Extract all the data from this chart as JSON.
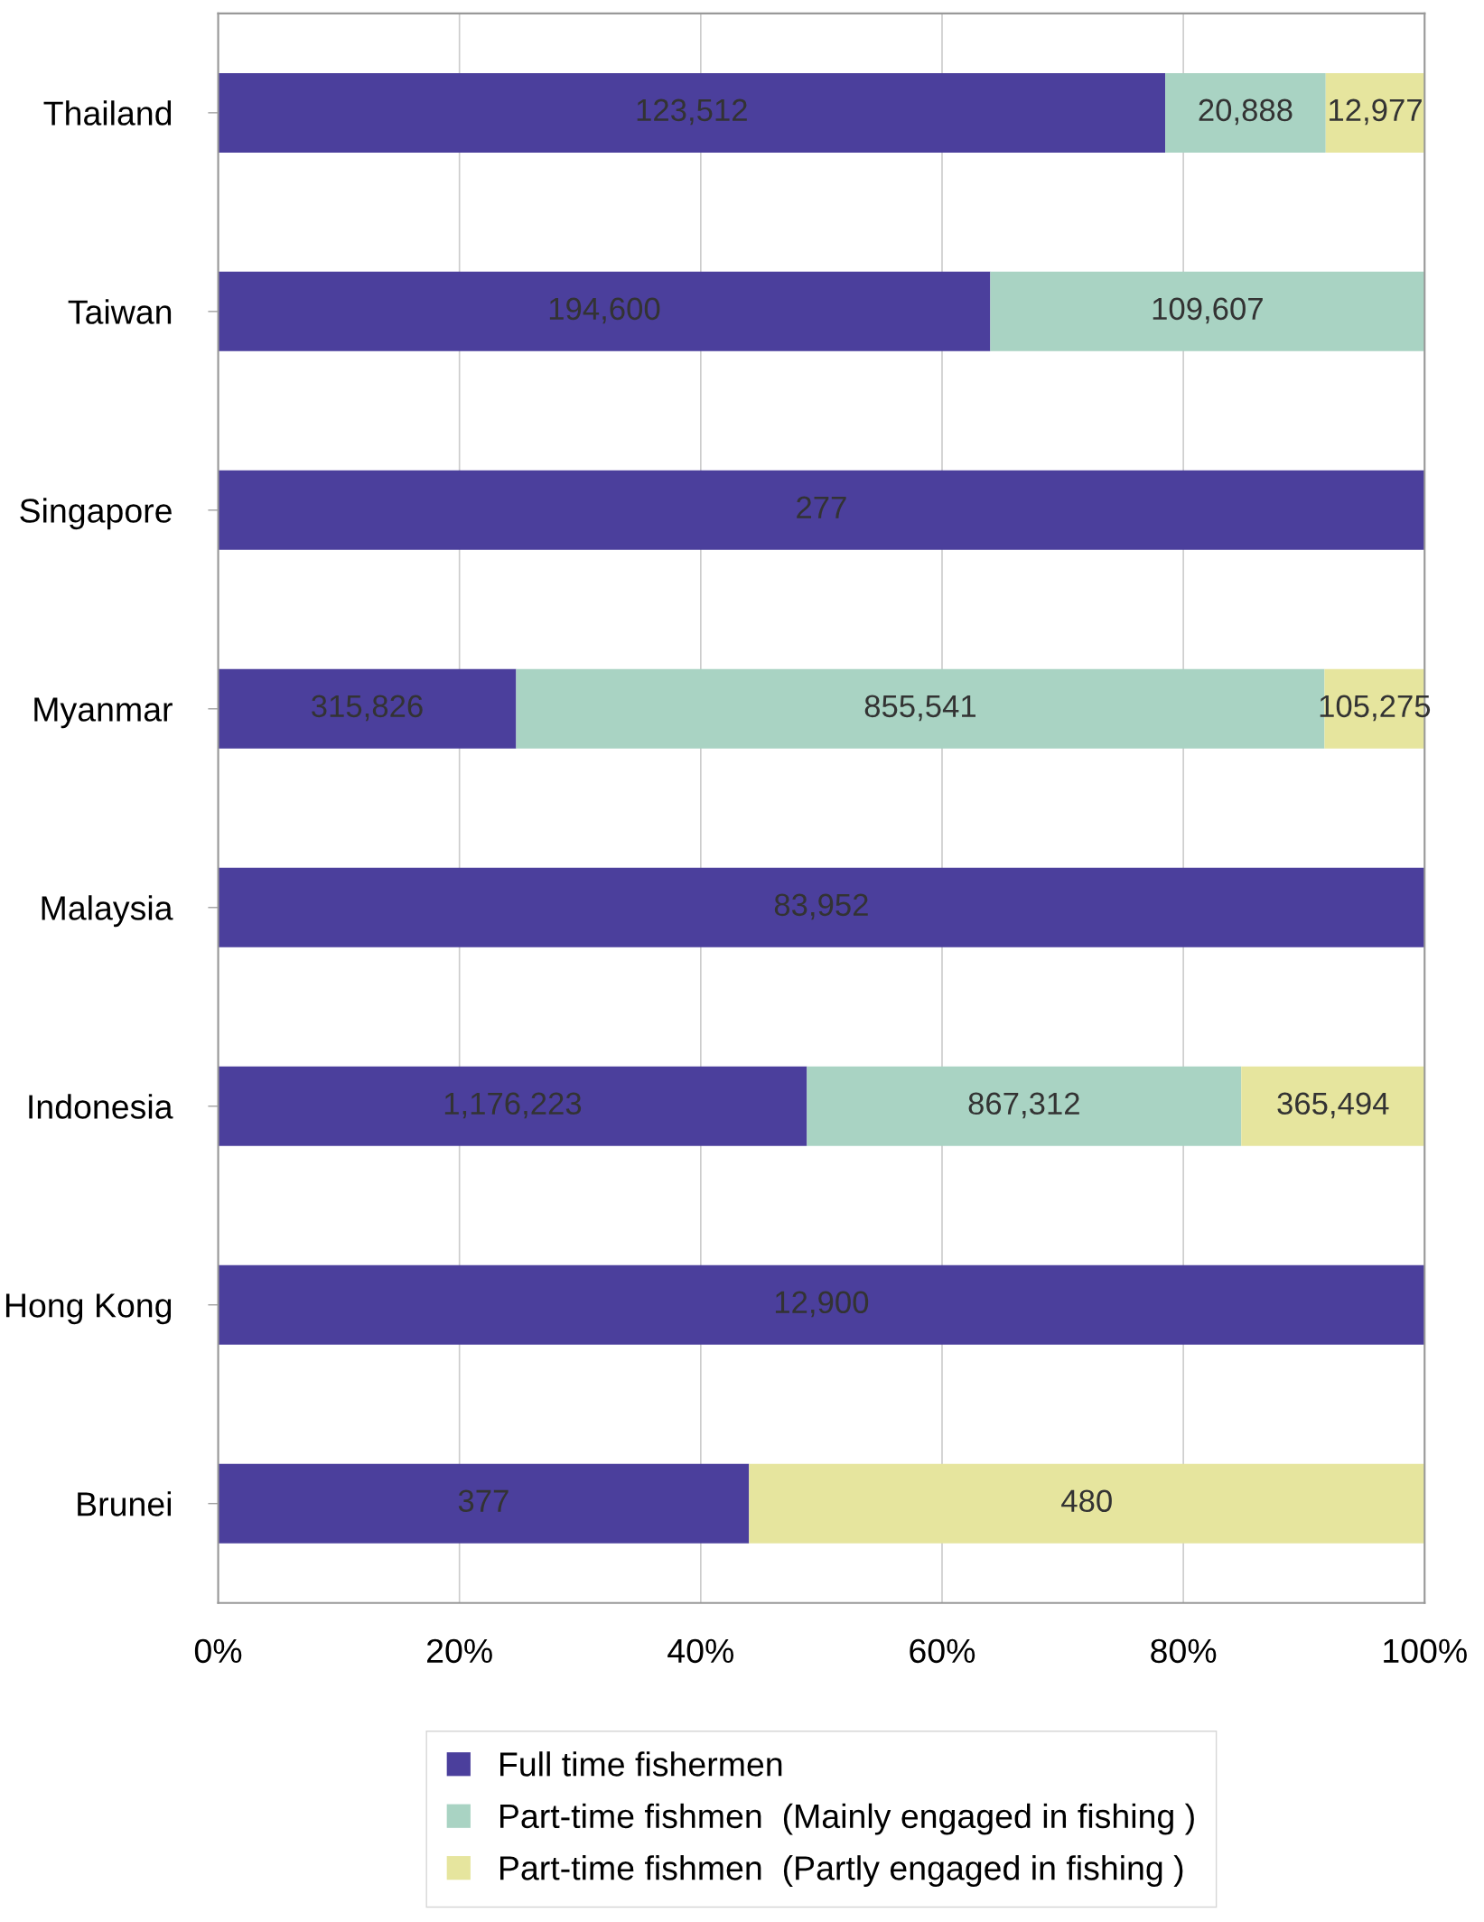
{
  "chart_data": {
    "type": "bar",
    "orientation": "horizontal",
    "stacked": true,
    "categories": [
      "Thailand",
      "Taiwan",
      "Singapore",
      "Myanmar",
      "Malaysia",
      "Indonesia",
      "Hong Kong",
      "Brunei"
    ],
    "series": [
      {
        "name": "Full time fishermen",
        "color": "#4b3f9c",
        "values": [
          78.5,
          64.0,
          100,
          24.7,
          100,
          48.8,
          100,
          44.0
        ]
      },
      {
        "name": "Part-time fishmen  (Mainly engaged in fishing )",
        "color": "#a9d3c3",
        "values": [
          13.3,
          36.0,
          null,
          67.0,
          null,
          36.0,
          null,
          null
        ]
      },
      {
        "name": "Part-time fishmen  (Partly engaged in fishing )",
        "color": "#e6e59e",
        "values": [
          8.2,
          null,
          null,
          8.3,
          null,
          15.2,
          null,
          56.0
        ]
      }
    ],
    "annotations": [
      "123,512",
      "20,888",
      "12,977",
      "194,600",
      "109,607",
      "277",
      "315,826",
      "855,541",
      "105,275",
      "83,952",
      "1,176,223",
      "867,312",
      "365,494",
      "12,900",
      "377",
      "480"
    ],
    "xlim": [
      0,
      100
    ],
    "xticks": [
      {
        "value": 0,
        "label": "0%"
      },
      {
        "value": 20,
        "label": "20%"
      },
      {
        "value": 40,
        "label": "40%"
      },
      {
        "value": 60,
        "label": "60%"
      },
      {
        "value": 80,
        "label": "80%"
      },
      {
        "value": 100,
        "label": "100%"
      }
    ],
    "grid": "x",
    "legend": "bottom"
  }
}
